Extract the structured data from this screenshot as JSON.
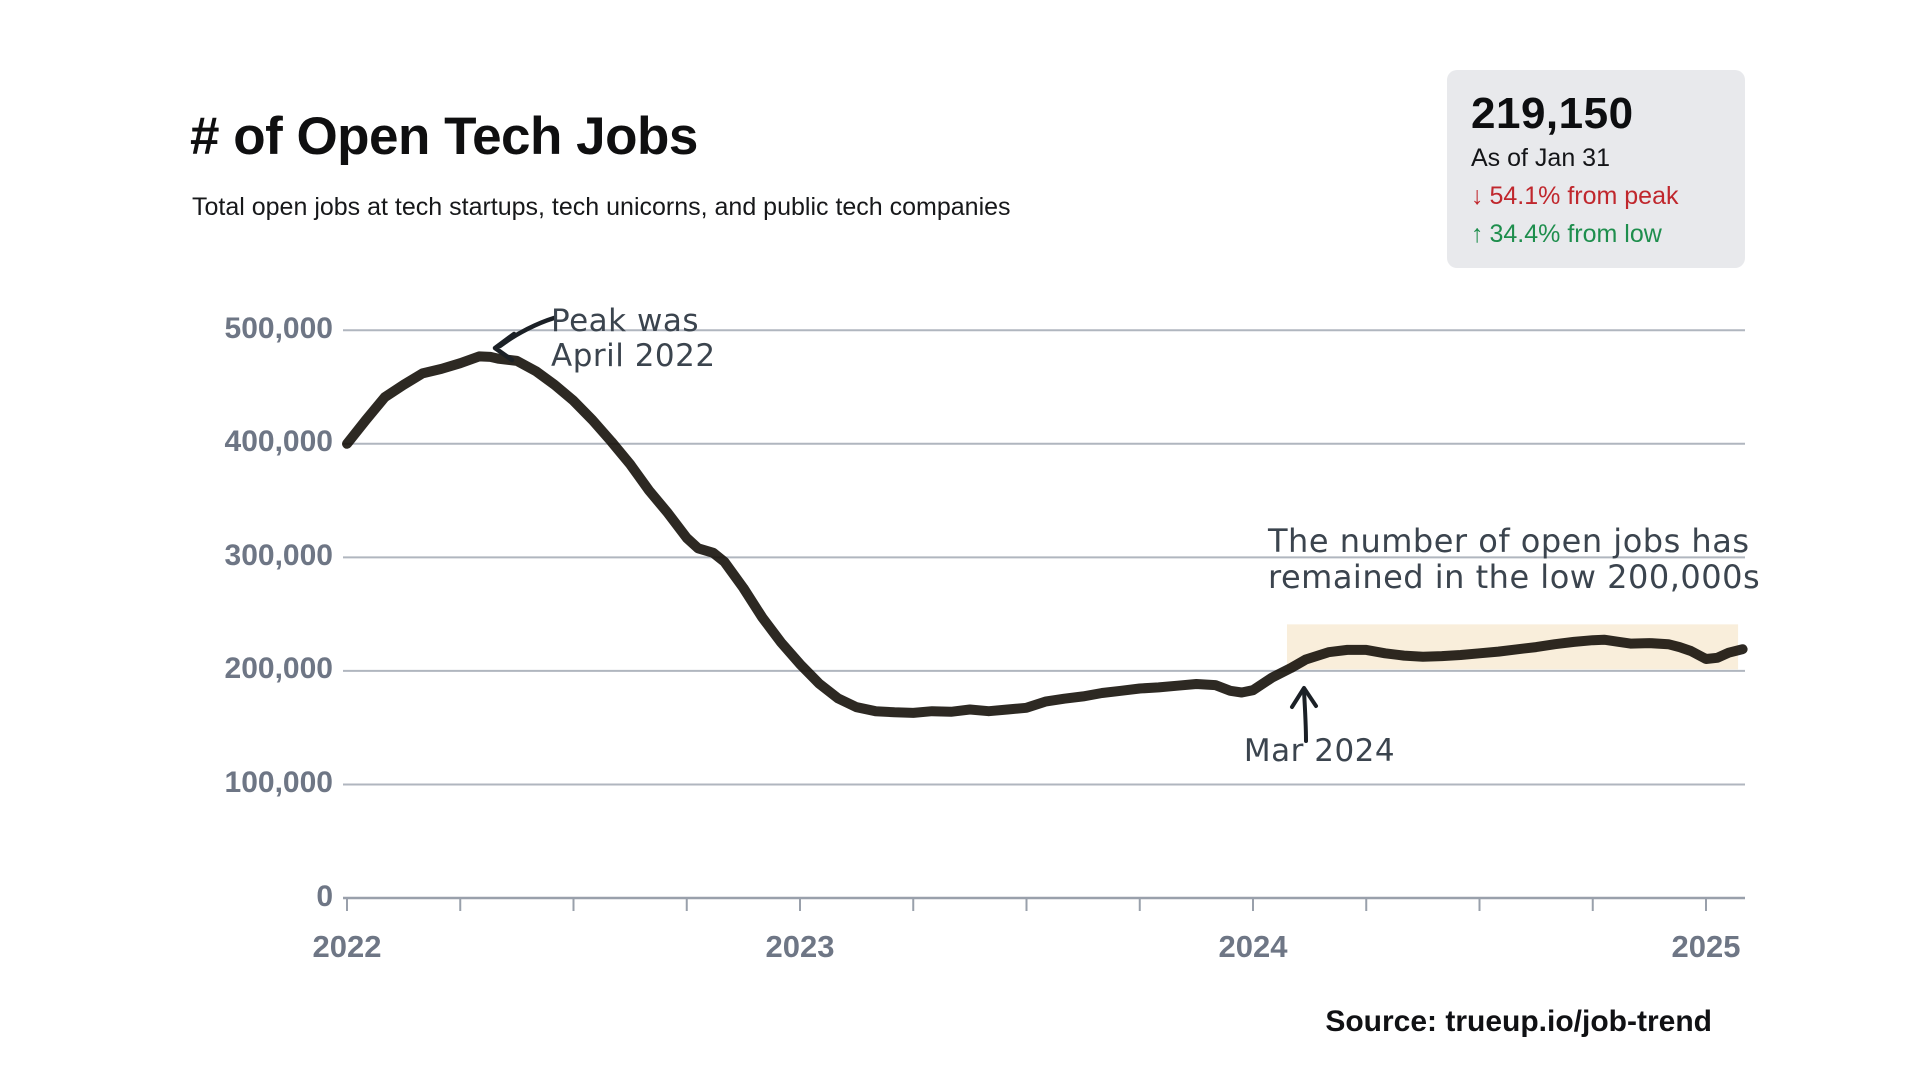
{
  "header": {
    "title": "# of Open Tech Jobs",
    "subtitle": "Total open jobs at tech startups, tech unicorns, and public tech companies"
  },
  "stats": {
    "current_value": "219,150",
    "as_of": "As of Jan 31",
    "down_arrow": "↓",
    "up_arrow": "↑",
    "from_peak": "54.1% from peak",
    "from_low": "34.4% from low",
    "box_bg": "#e8e9ec",
    "down_color": "#c0272d",
    "up_color": "#1e8e4d"
  },
  "annotations": {
    "peak_line1": "Peak was",
    "peak_line2": "April 2022",
    "band_line1": "The number of open jobs has",
    "band_line2": "remained in the low 200,000s",
    "mar2024": "Mar 2024"
  },
  "source": "Source: trueup.io/job-trend",
  "chart_data": {
    "type": "line",
    "title": "# of Open Tech Jobs",
    "xlabel": "",
    "ylabel": "",
    "x_unit": "months since Jan 2022",
    "x_tick_labels": [
      "2022",
      "2023",
      "2024",
      "2025"
    ],
    "x_year_tick_months": [
      0,
      12,
      24,
      36
    ],
    "quarter_tick_months": [
      0,
      3,
      6,
      9,
      12,
      15,
      18,
      21,
      24,
      27,
      30,
      33,
      36
    ],
    "y_tick_labels": [
      "500,000",
      "400,000",
      "300,000",
      "200,000",
      "100,000",
      "0"
    ],
    "y_tick_values": [
      500000,
      400000,
      300000,
      200000,
      100000,
      0
    ],
    "ylim": [
      0,
      500000
    ],
    "grid": true,
    "legend": "none",
    "line_color": "#100b04",
    "line_width": 10,
    "grid_color": "#b0b6bf",
    "axis_color": "#99a0ab",
    "tick_label_color": "#6e7685",
    "highlight_band": {
      "start_month": 24.9,
      "end_month": 36.85,
      "y_from": 200000,
      "y_to": 241000,
      "color": "#f9eedb"
    },
    "peak": {
      "month_label": "April 2022",
      "value": 477450
    },
    "low": {
      "value": 163058
    },
    "latest": {
      "date_label": "Jan 31",
      "value": 219150
    },
    "series": [
      {
        "name": "Total open tech jobs",
        "points": [
          [
            0,
            400000
          ],
          [
            0.5,
            421000
          ],
          [
            1,
            441000
          ],
          [
            1.5,
            452000
          ],
          [
            2,
            462000
          ],
          [
            2.5,
            466000
          ],
          [
            3,
            471000
          ],
          [
            3.5,
            477000
          ],
          [
            3.8,
            476500
          ],
          [
            4,
            475000
          ],
          [
            4.5,
            473000
          ],
          [
            5,
            464000
          ],
          [
            5.5,
            452000
          ],
          [
            6,
            438000
          ],
          [
            6.5,
            421000
          ],
          [
            7,
            402000
          ],
          [
            7.5,
            382000
          ],
          [
            8,
            359000
          ],
          [
            8.5,
            339000
          ],
          [
            9,
            317000
          ],
          [
            9.3,
            308000
          ],
          [
            9.7,
            304000
          ],
          [
            10,
            296000
          ],
          [
            10.5,
            273000
          ],
          [
            11,
            247000
          ],
          [
            11.5,
            225000
          ],
          [
            12,
            206000
          ],
          [
            12.5,
            189000
          ],
          [
            13,
            176000
          ],
          [
            13.5,
            168000
          ],
          [
            14,
            164500
          ],
          [
            14.5,
            163500
          ],
          [
            15,
            163000
          ],
          [
            15.5,
            164500
          ],
          [
            16,
            164000
          ],
          [
            16.5,
            166000
          ],
          [
            17,
            164500
          ],
          [
            17.5,
            166000
          ],
          [
            18,
            167500
          ],
          [
            18.5,
            173000
          ],
          [
            19,
            175500
          ],
          [
            19.5,
            177500
          ],
          [
            20,
            180500
          ],
          [
            20.5,
            182500
          ],
          [
            21,
            184500
          ],
          [
            21.5,
            185500
          ],
          [
            22,
            187000
          ],
          [
            22.5,
            188500
          ],
          [
            23,
            187500
          ],
          [
            23.4,
            182500
          ],
          [
            23.7,
            181000
          ],
          [
            24,
            183000
          ],
          [
            24.5,
            194000
          ],
          [
            25,
            202500
          ],
          [
            25.4,
            210000
          ],
          [
            26,
            216500
          ],
          [
            26.5,
            218500
          ],
          [
            27,
            218500
          ],
          [
            27.5,
            215500
          ],
          [
            28,
            213500
          ],
          [
            28.5,
            212500
          ],
          [
            29,
            213000
          ],
          [
            29.5,
            214000
          ],
          [
            30,
            215500
          ],
          [
            30.5,
            217000
          ],
          [
            31,
            219000
          ],
          [
            31.5,
            221000
          ],
          [
            32,
            223500
          ],
          [
            32.5,
            225500
          ],
          [
            33,
            227000
          ],
          [
            33.3,
            227500
          ],
          [
            33.7,
            225500
          ],
          [
            34,
            224000
          ],
          [
            34.5,
            224500
          ],
          [
            35,
            223500
          ],
          [
            35.3,
            221000
          ],
          [
            35.6,
            217500
          ],
          [
            36,
            210500
          ],
          [
            36.3,
            211500
          ],
          [
            36.6,
            216000
          ],
          [
            36.97,
            219150
          ]
        ]
      }
    ]
  }
}
